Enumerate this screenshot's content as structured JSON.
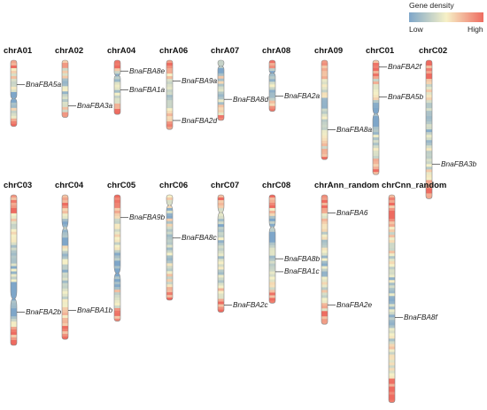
{
  "legend": {
    "title": "Gene density",
    "low": "Low",
    "high": "High",
    "colors": [
      "#7ea6c9",
      "#f6f1c7",
      "#ee6b60"
    ]
  },
  "chromosomes": [
    {
      "name": "chrA01",
      "genes": [
        {
          "name": "BnaFBA5a",
          "pos": 0.37
        }
      ],
      "centromere": 0.58,
      "length": 0.44
    },
    {
      "name": "chrA02",
      "genes": [
        {
          "name": "BnaFBA3a",
          "pos": 0.8
        }
      ],
      "centromere": null,
      "length": 0.38
    },
    {
      "name": "chrA04",
      "genes": [
        {
          "name": "BnaFBA8e",
          "pos": 0.2
        },
        {
          "name": "BnaFBA1a",
          "pos": 0.55
        }
      ],
      "centromere": 0.28,
      "length": 0.36
    },
    {
      "name": "chrA06",
      "genes": [
        {
          "name": "BnaFBA9a",
          "pos": 0.3
        },
        {
          "name": "BnaFBA2d",
          "pos": 0.87
        }
      ],
      "centromere": null,
      "length": 0.46
    },
    {
      "name": "chrA07",
      "genes": [
        {
          "name": "BnaFBA8d",
          "pos": 0.65
        }
      ],
      "centromere": 0.1,
      "length": 0.4
    },
    {
      "name": "chrA08",
      "genes": [
        {
          "name": "BnaFBA2a",
          "pos": 0.7
        }
      ],
      "centromere": 0.25,
      "length": 0.34
    },
    {
      "name": "chrA09",
      "genes": [
        {
          "name": "BnaFBA8a",
          "pos": 0.7
        }
      ],
      "centromere": null,
      "length": 0.66
    },
    {
      "name": "chrC01",
      "genes": [
        {
          "name": "BnaFBA2f",
          "pos": 0.06
        },
        {
          "name": "BnaFBA5b",
          "pos": 0.32
        }
      ],
      "centromere": 0.47,
      "length": 0.76
    },
    {
      "name": "chrC02",
      "genes": [
        {
          "name": "BnaFBA3b",
          "pos": 0.75
        }
      ],
      "centromere": null,
      "length": 0.92
    },
    {
      "name": "chrC03",
      "genes": [
        {
          "name": "BnaFBA2b",
          "pos": 0.78
        }
      ],
      "centromere": 0.69,
      "length": 1.0
    },
    {
      "name": "chrC04",
      "genes": [
        {
          "name": "BnaFBA1b",
          "pos": 0.8
        }
      ],
      "centromere": 0.23,
      "length": 0.96
    },
    {
      "name": "chrC05",
      "genes": [
        {
          "name": "BnaFBA9b",
          "pos": 0.18
        }
      ],
      "centromere": 0.62,
      "length": 0.84
    },
    {
      "name": "chrC06",
      "genes": [
        {
          "name": "BnaFBA8c",
          "pos": 0.41
        }
      ],
      "centromere": 0.1,
      "length": 0.7
    },
    {
      "name": "chrC07",
      "genes": [
        {
          "name": "BnaFBA2c",
          "pos": 0.94
        }
      ],
      "centromere": 0.15,
      "length": 0.78
    },
    {
      "name": "chrC08",
      "genes": [
        {
          "name": "BnaFBA8b",
          "pos": 0.59
        },
        {
          "name": "BnaFBA1c",
          "pos": 0.71
        }
      ],
      "centromere": 0.3,
      "length": 0.72
    },
    {
      "name": "chrAnn_random",
      "genes": [
        {
          "name": "BnaFBA6",
          "pos": 0.14
        },
        {
          "name": "BnaFBA2e",
          "pos": 0.85
        }
      ],
      "centromere": null,
      "length": 0.86
    },
    {
      "name": "chrCnn_random",
      "genes": [
        {
          "name": "BnaFBA8f",
          "pos": 0.59
        }
      ],
      "centromere": null,
      "length": 1.38
    }
  ]
}
